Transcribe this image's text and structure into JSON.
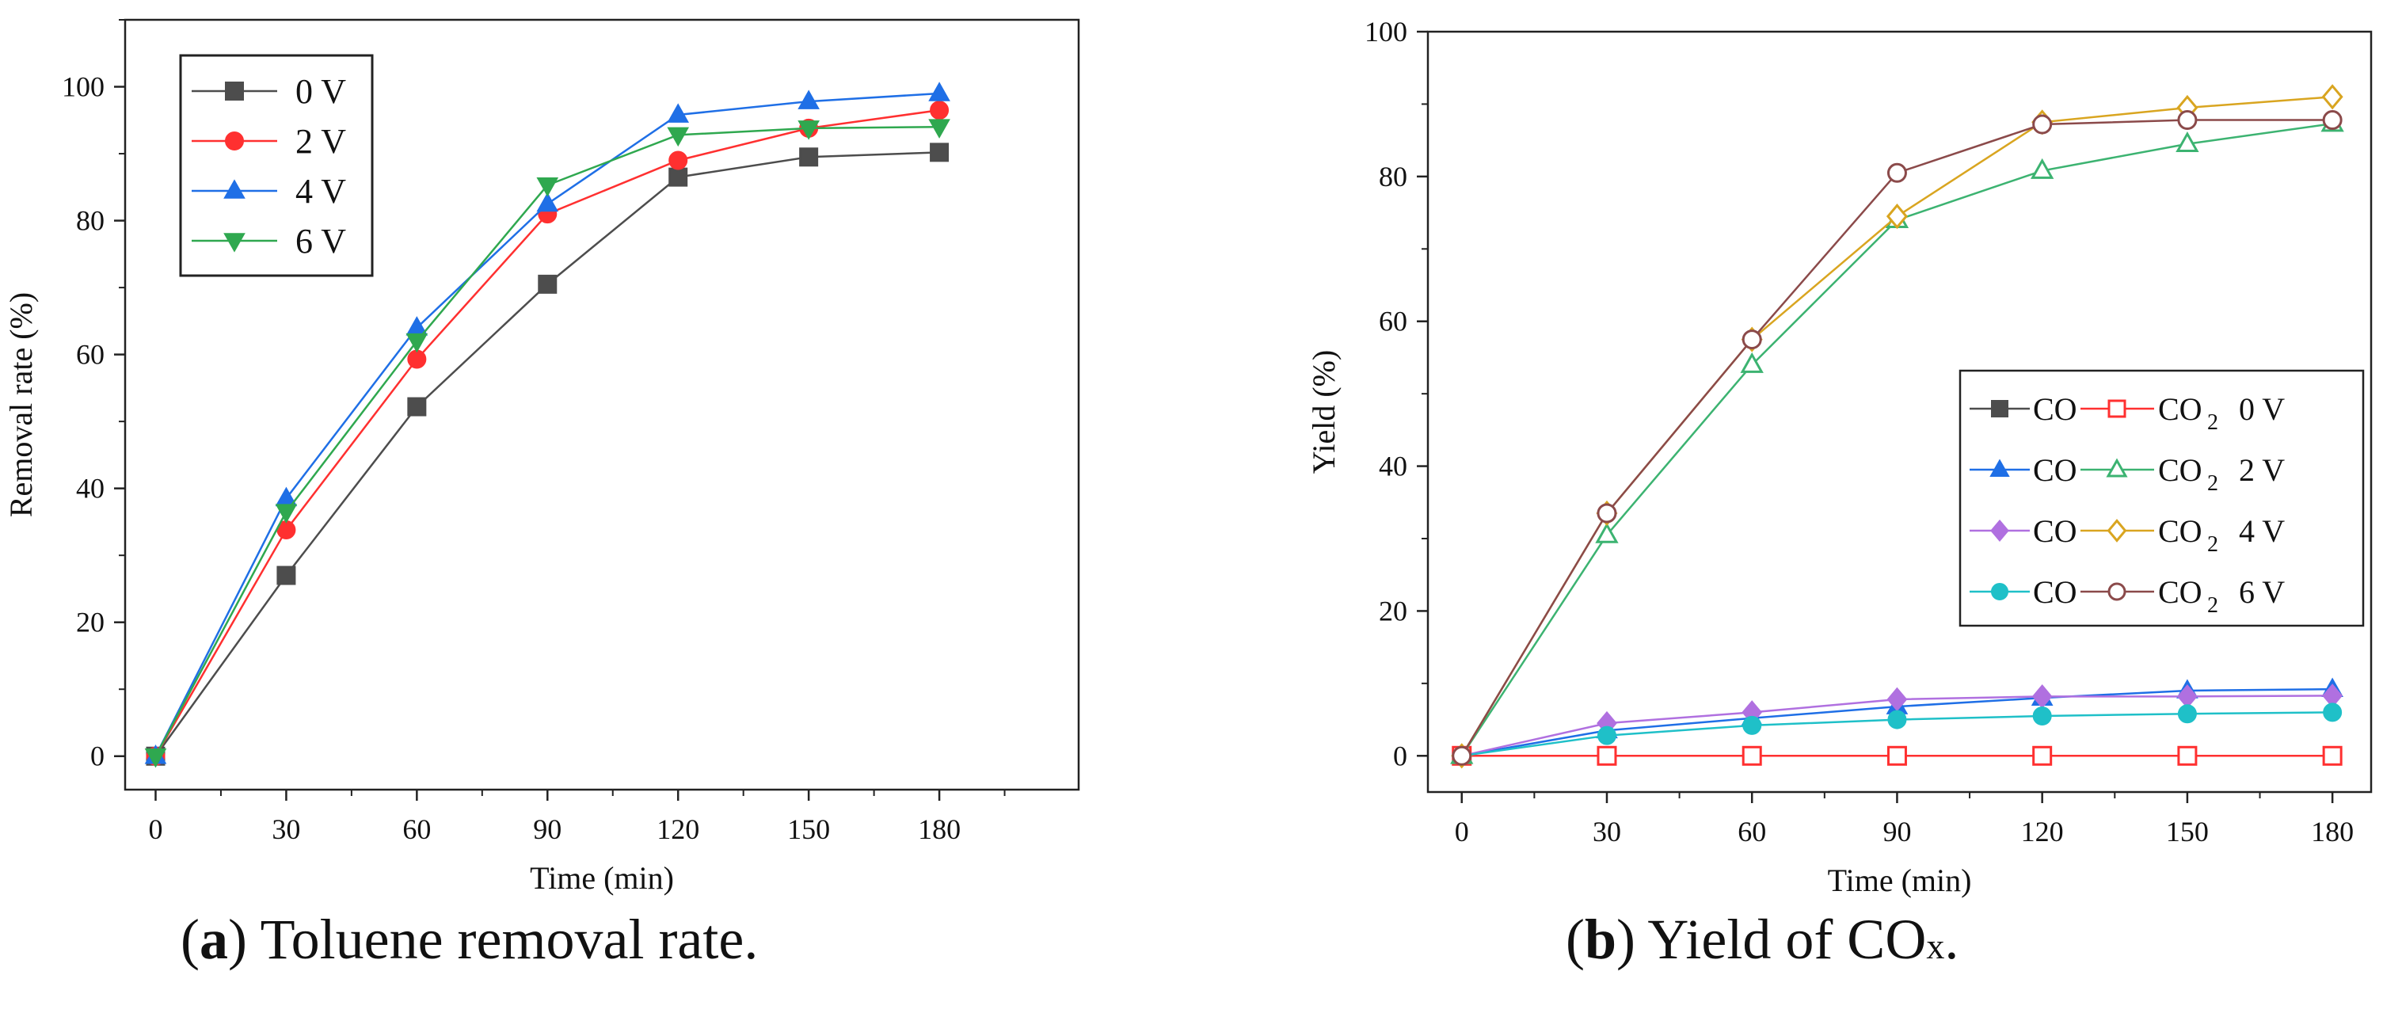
{
  "captions": {
    "a": {
      "letter": "a",
      "text": "Toluene removal rate."
    },
    "b": {
      "letter": "b",
      "text": "Yield of CO",
      "sub": "x",
      "end": "."
    }
  },
  "chart_data": [
    {
      "type": "line",
      "id": "a",
      "xlabel": "Time (min)",
      "ylabel": "Removal rate (%)",
      "xlim": [
        -7,
        212
      ],
      "ylim": [
        -5,
        110
      ],
      "xticks": [
        0,
        30,
        60,
        90,
        120,
        150,
        180
      ],
      "yticks": [
        0,
        20,
        40,
        60,
        80,
        100
      ],
      "legend": "top-left",
      "x": [
        0,
        30,
        60,
        90,
        120,
        150,
        180
      ],
      "series": [
        {
          "name": "0 V",
          "color": "#4d4d4d",
          "marker": "square",
          "filled": true,
          "values": [
            0,
            27,
            52.2,
            70.5,
            86.5,
            89.5,
            90.2
          ]
        },
        {
          "name": "2 V",
          "color": "#ff3030",
          "marker": "circle",
          "filled": true,
          "values": [
            0,
            33.8,
            59.3,
            81,
            89,
            93.8,
            96.5
          ]
        },
        {
          "name": "4 V",
          "color": "#1f6fe6",
          "marker": "triangle-up",
          "filled": true,
          "values": [
            0,
            38.5,
            64,
            82.5,
            95.8,
            97.8,
            99
          ]
        },
        {
          "name": "6 V",
          "color": "#2fa84f",
          "marker": "triangle-down",
          "filled": true,
          "values": [
            0,
            36.5,
            62,
            85.3,
            92.8,
            93.8,
            94
          ]
        }
      ]
    },
    {
      "type": "line",
      "id": "b",
      "xlabel": "Time (min)",
      "ylabel": "Yield (%)",
      "xlim": [
        -7,
        188
      ],
      "ylim": [
        -5,
        100
      ],
      "xticks": [
        0,
        30,
        60,
        90,
        120,
        150,
        180
      ],
      "yticks": [
        0,
        20,
        40,
        60,
        80,
        100
      ],
      "legend": "right",
      "x": [
        0,
        30,
        60,
        90,
        120,
        150,
        180
      ],
      "legend_rows": [
        {
          "left": "CO",
          "right": "CO",
          "right_sub": "2",
          "voltage": "0 V"
        },
        {
          "left": "CO",
          "right": "CO",
          "right_sub": "2",
          "voltage": "2 V"
        },
        {
          "left": "CO",
          "right": "CO",
          "right_sub": "2",
          "voltage": "4 V"
        },
        {
          "left": "CO",
          "right": "CO",
          "right_sub": "2",
          "voltage": "6 V"
        }
      ],
      "series": [
        {
          "name": "CO 0 V",
          "color": "#4d4d4d",
          "marker": "square",
          "filled": true,
          "values": [
            0,
            0,
            0,
            0,
            0,
            0,
            0
          ]
        },
        {
          "name": "CO2 0 V",
          "color": "#ff3030",
          "marker": "square",
          "filled": false,
          "values": [
            0,
            0,
            0,
            0,
            0,
            0,
            0
          ]
        },
        {
          "name": "CO 2 V",
          "color": "#1f6fe6",
          "marker": "triangle-up",
          "filled": true,
          "values": [
            0,
            3.5,
            5.2,
            6.8,
            8.0,
            9.0,
            9.2
          ]
        },
        {
          "name": "CO2 2 V",
          "color": "#3cb371",
          "marker": "triangle-up",
          "filled": false,
          "values": [
            0,
            30.5,
            54,
            74,
            80.8,
            84.5,
            87.3
          ]
        },
        {
          "name": "CO 4 V",
          "color": "#b070e0",
          "marker": "diamond",
          "filled": true,
          "values": [
            0,
            4.5,
            6,
            7.8,
            8.2,
            8.2,
            8.3
          ]
        },
        {
          "name": "CO2 4 V",
          "color": "#d9a520",
          "marker": "diamond",
          "filled": false,
          "values": [
            0,
            33.5,
            57.5,
            74.5,
            87.5,
            89.5,
            91
          ]
        },
        {
          "name": "CO 6 V",
          "color": "#1fc0c8",
          "marker": "circle",
          "filled": true,
          "values": [
            0,
            2.8,
            4.2,
            5,
            5.5,
            5.8,
            6
          ]
        },
        {
          "name": "CO2 6 V",
          "color": "#8b4a4a",
          "marker": "circle",
          "filled": false,
          "values": [
            0,
            33.5,
            57.5,
            80.5,
            87.2,
            87.8,
            87.8
          ]
        }
      ]
    }
  ]
}
